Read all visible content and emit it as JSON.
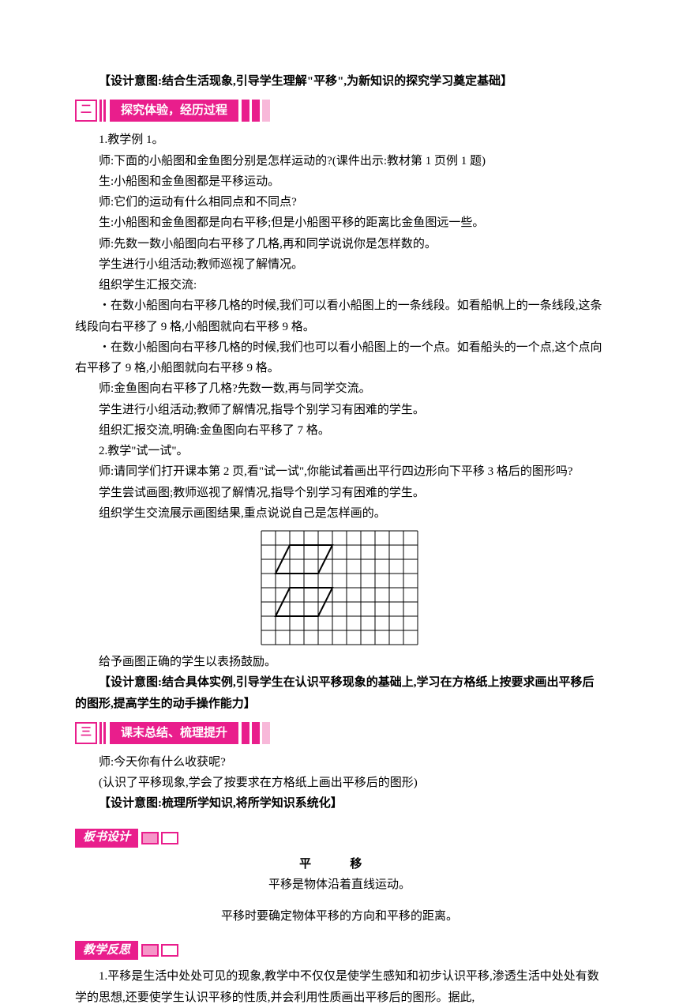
{
  "intro_design": "【设计意图:结合生活现象,引导学生理解\"平移\",为新知识的探究学习奠定基础】",
  "section2": {
    "num": "二",
    "title": "探究体验，经历过程"
  },
  "body1": [
    "1.教学例 1。",
    "师:下面的小船图和金鱼图分别是怎样运动的?(课件出示:教材第 1 页例 1 题)",
    "生:小船图和金鱼图都是平移运动。",
    "师:它们的运动有什么相同点和不同点?",
    "生:小船图和金鱼图都是向右平移;但是小船图平移的距离比金鱼图远一些。",
    "师:先数一数小船图向右平移了几格,再和同学说说你是怎样数的。",
    "学生进行小组活动;教师巡视了解情况。",
    "组织学生汇报交流:"
  ],
  "bullets1": [
    "・在数小船图向右平移几格的时候,我们可以看小船图上的一条线段。如看船帆上的一条线段,这条线段向右平移了 9 格,小船图就向右平移 9 格。",
    "・在数小船图向右平移几格的时候,我们也可以看小船图上的一个点。如看船头的一个点,这个点向右平移了 9 格,小船图就向右平移 9 格。"
  ],
  "body2": [
    "师:金鱼图向右平移了几格?先数一数,再与同学交流。",
    "学生进行小组活动;教师了解情况,指导个别学习有困难的学生。",
    "组织汇报交流,明确:金鱼图向右平移了 7 格。",
    "2.教学\"试一试\"。",
    "师:请同学们打开课本第 2 页,看\"试一试\",你能试着画出平行四边形向下平移 3 格后的图形吗?",
    "学生尝试画图;教师巡视了解情况,指导个别学习有困难的学生。",
    "组织学生交流展示画图结果,重点说说自己是怎样画的。"
  ],
  "figure": {
    "cols": 11,
    "rows": 8,
    "cell": 18,
    "stroke": "#000000",
    "gridStroke": "#000000",
    "shapes": [
      {
        "points": [
          [
            2,
            1
          ],
          [
            5,
            1
          ],
          [
            4,
            3
          ],
          [
            1,
            3
          ]
        ],
        "fill": "none"
      },
      {
        "points": [
          [
            2,
            4
          ],
          [
            5,
            4
          ],
          [
            4,
            6
          ],
          [
            1,
            6
          ]
        ],
        "fill": "none"
      }
    ]
  },
  "body3": [
    "给予画图正确的学生以表扬鼓励。"
  ],
  "design2": "【设计意图:结合具体实例,引导学生在认识平移现象的基础上,学习在方格纸上按要求画出平移后的图形,提高学生的动手操作能力】",
  "section3": {
    "num": "三",
    "title": "课末总结、梳理提升"
  },
  "body4": [
    "师:今天你有什么收获呢?",
    "(认识了平移现象,学会了按要求在方格纸上画出平移后的图形)"
  ],
  "design3": "【设计意图:梳理所学知识,将所学知识系统化】",
  "board_design_label": "板书设计",
  "board": {
    "title": "平 移",
    "line1": "平移是物体沿着直线运动。",
    "line2": "平移时要确定物体平移的方向和平移的距离。"
  },
  "reflection_label": "教学反思",
  "reflection": "1.平移是生活中处处可见的现象,教学中不仅仅是使学生感知和初步认识平移,渗透生活中处处有数学的思想,还要使学生认识平移的性质,并会利用性质画出平移后的图形。据此,",
  "colors": {
    "accent": "#e91e8c",
    "accent_light": "#f8b8d9",
    "accent_mid": "#f596c8"
  }
}
